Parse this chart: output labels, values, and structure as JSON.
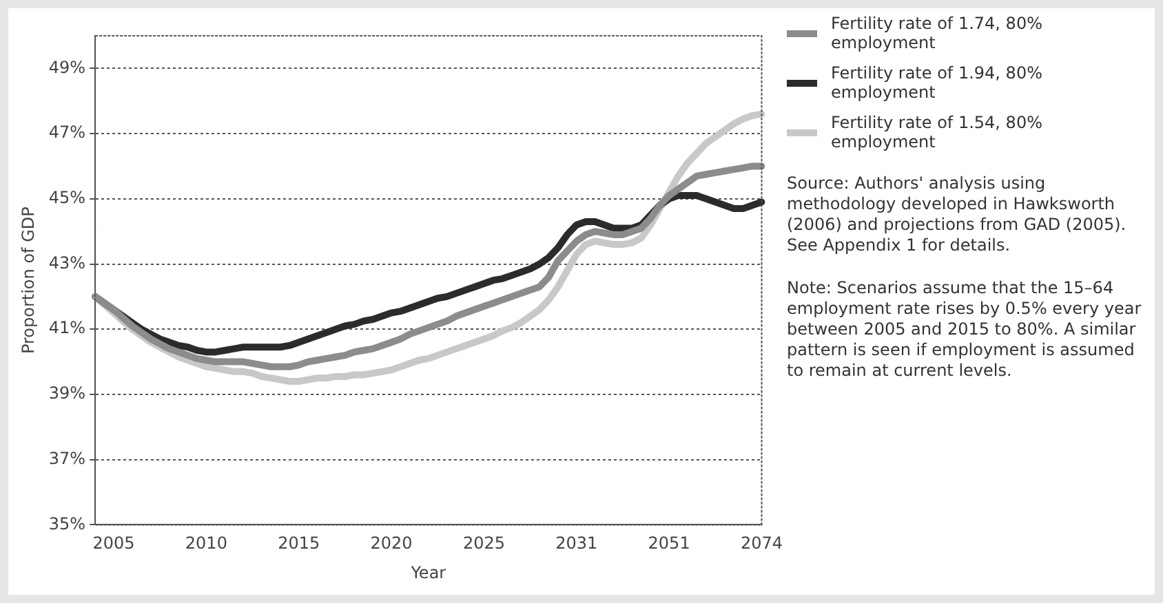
{
  "chart_data": {
    "type": "line",
    "xlabel": "Year",
    "ylabel": "Proportion of GDP",
    "categories": [
      null,
      null,
      "2005",
      null,
      null,
      null,
      null,
      null,
      null,
      null,
      null,
      null,
      "2010",
      null,
      null,
      null,
      null,
      null,
      null,
      null,
      null,
      null,
      "2015",
      null,
      null,
      null,
      null,
      null,
      null,
      null,
      null,
      null,
      "2020",
      null,
      null,
      null,
      null,
      null,
      null,
      null,
      null,
      null,
      "2025",
      null,
      null,
      null,
      null,
      null,
      null,
      null,
      null,
      null,
      "2031",
      null,
      null,
      null,
      null,
      null,
      null,
      null,
      null,
      null,
      "2051",
      null,
      null,
      null,
      null,
      null,
      null,
      null,
      null,
      null,
      "2074"
    ],
    "series": [
      {
        "name": "Fertility rate of 1.74, 80% employment",
        "color": "#8c8c8c",
        "values": [
          42.0,
          41.8,
          41.6,
          41.35,
          41.1,
          40.9,
          40.7,
          40.55,
          40.4,
          40.3,
          40.2,
          40.1,
          40.05,
          40.0,
          40.0,
          40.0,
          40.0,
          39.95,
          39.9,
          39.85,
          39.85,
          39.85,
          39.9,
          40.0,
          40.05,
          40.1,
          40.15,
          40.2,
          40.3,
          40.35,
          40.4,
          40.5,
          40.6,
          40.7,
          40.85,
          40.95,
          41.05,
          41.15,
          41.25,
          41.4,
          41.5,
          41.6,
          41.7,
          41.8,
          41.9,
          42.0,
          42.1,
          42.2,
          42.3,
          42.6,
          43.1,
          43.4,
          43.7,
          43.9,
          44.0,
          43.95,
          43.9,
          43.9,
          44.0,
          44.1,
          44.4,
          44.8,
          45.1,
          45.3,
          45.5,
          45.7,
          45.75,
          45.8,
          45.85,
          45.9,
          45.95,
          46.0,
          46.0
        ]
      },
      {
        "name": "Fertility rate of 1.94, 80% employment",
        "color": "#2b2b2b",
        "values": [
          42.0,
          41.8,
          41.6,
          41.4,
          41.2,
          41.0,
          40.85,
          40.7,
          40.6,
          40.5,
          40.45,
          40.35,
          40.3,
          40.3,
          40.35,
          40.4,
          40.45,
          40.45,
          40.45,
          40.45,
          40.45,
          40.5,
          40.6,
          40.7,
          40.8,
          40.9,
          41.0,
          41.1,
          41.15,
          41.25,
          41.3,
          41.4,
          41.5,
          41.55,
          41.65,
          41.75,
          41.85,
          41.95,
          42.0,
          42.1,
          42.2,
          42.3,
          42.4,
          42.5,
          42.55,
          42.65,
          42.75,
          42.85,
          43.0,
          43.2,
          43.5,
          43.9,
          44.2,
          44.3,
          44.3,
          44.2,
          44.1,
          44.1,
          44.1,
          44.2,
          44.5,
          44.8,
          45.0,
          45.1,
          45.1,
          45.1,
          45.0,
          44.9,
          44.8,
          44.7,
          44.7,
          44.8,
          44.9
        ]
      },
      {
        "name": "Fertility rate of 1.54, 80% employment",
        "color": "#c8c8c8",
        "values": [
          42.0,
          41.75,
          41.5,
          41.25,
          41.0,
          40.8,
          40.6,
          40.45,
          40.3,
          40.15,
          40.05,
          39.95,
          39.85,
          39.8,
          39.75,
          39.7,
          39.7,
          39.65,
          39.55,
          39.5,
          39.45,
          39.4,
          39.4,
          39.45,
          39.5,
          39.5,
          39.55,
          39.55,
          39.6,
          39.6,
          39.65,
          39.7,
          39.75,
          39.85,
          39.95,
          40.05,
          40.1,
          40.2,
          40.3,
          40.4,
          40.5,
          40.6,
          40.7,
          40.8,
          40.95,
          41.05,
          41.2,
          41.4,
          41.6,
          41.9,
          42.3,
          42.8,
          43.3,
          43.6,
          43.7,
          43.65,
          43.6,
          43.6,
          43.65,
          43.8,
          44.2,
          44.7,
          45.2,
          45.7,
          46.1,
          46.4,
          46.7,
          46.9,
          47.1,
          47.3,
          47.45,
          47.55,
          47.6
        ]
      }
    ],
    "ylim": [
      35,
      50
    ],
    "yticks": [
      {
        "value": 35,
        "label": "35%"
      },
      {
        "value": 37,
        "label": "37%"
      },
      {
        "value": 39,
        "label": "39%"
      },
      {
        "value": 41,
        "label": "41%"
      },
      {
        "value": 43,
        "label": "43%"
      },
      {
        "value": 45,
        "label": "45%"
      },
      {
        "value": 47,
        "label": "47%"
      },
      {
        "value": 49,
        "label": "49%"
      }
    ],
    "grid": "y",
    "legend": "right",
    "marker": "none",
    "line_style": "solid",
    "annotations": [
      "Source: Authors' analysis using methodology developed in Hawksworth (2006) and projections from GAD (2005). See Appendix 1 for details.",
      "Note: Scenarios assume that the 15–64 employment rate rises by 0.5% every year between 2005 and 2015 to 80%. A similar pattern is seen if employment is assumed to remain at current levels."
    ]
  }
}
